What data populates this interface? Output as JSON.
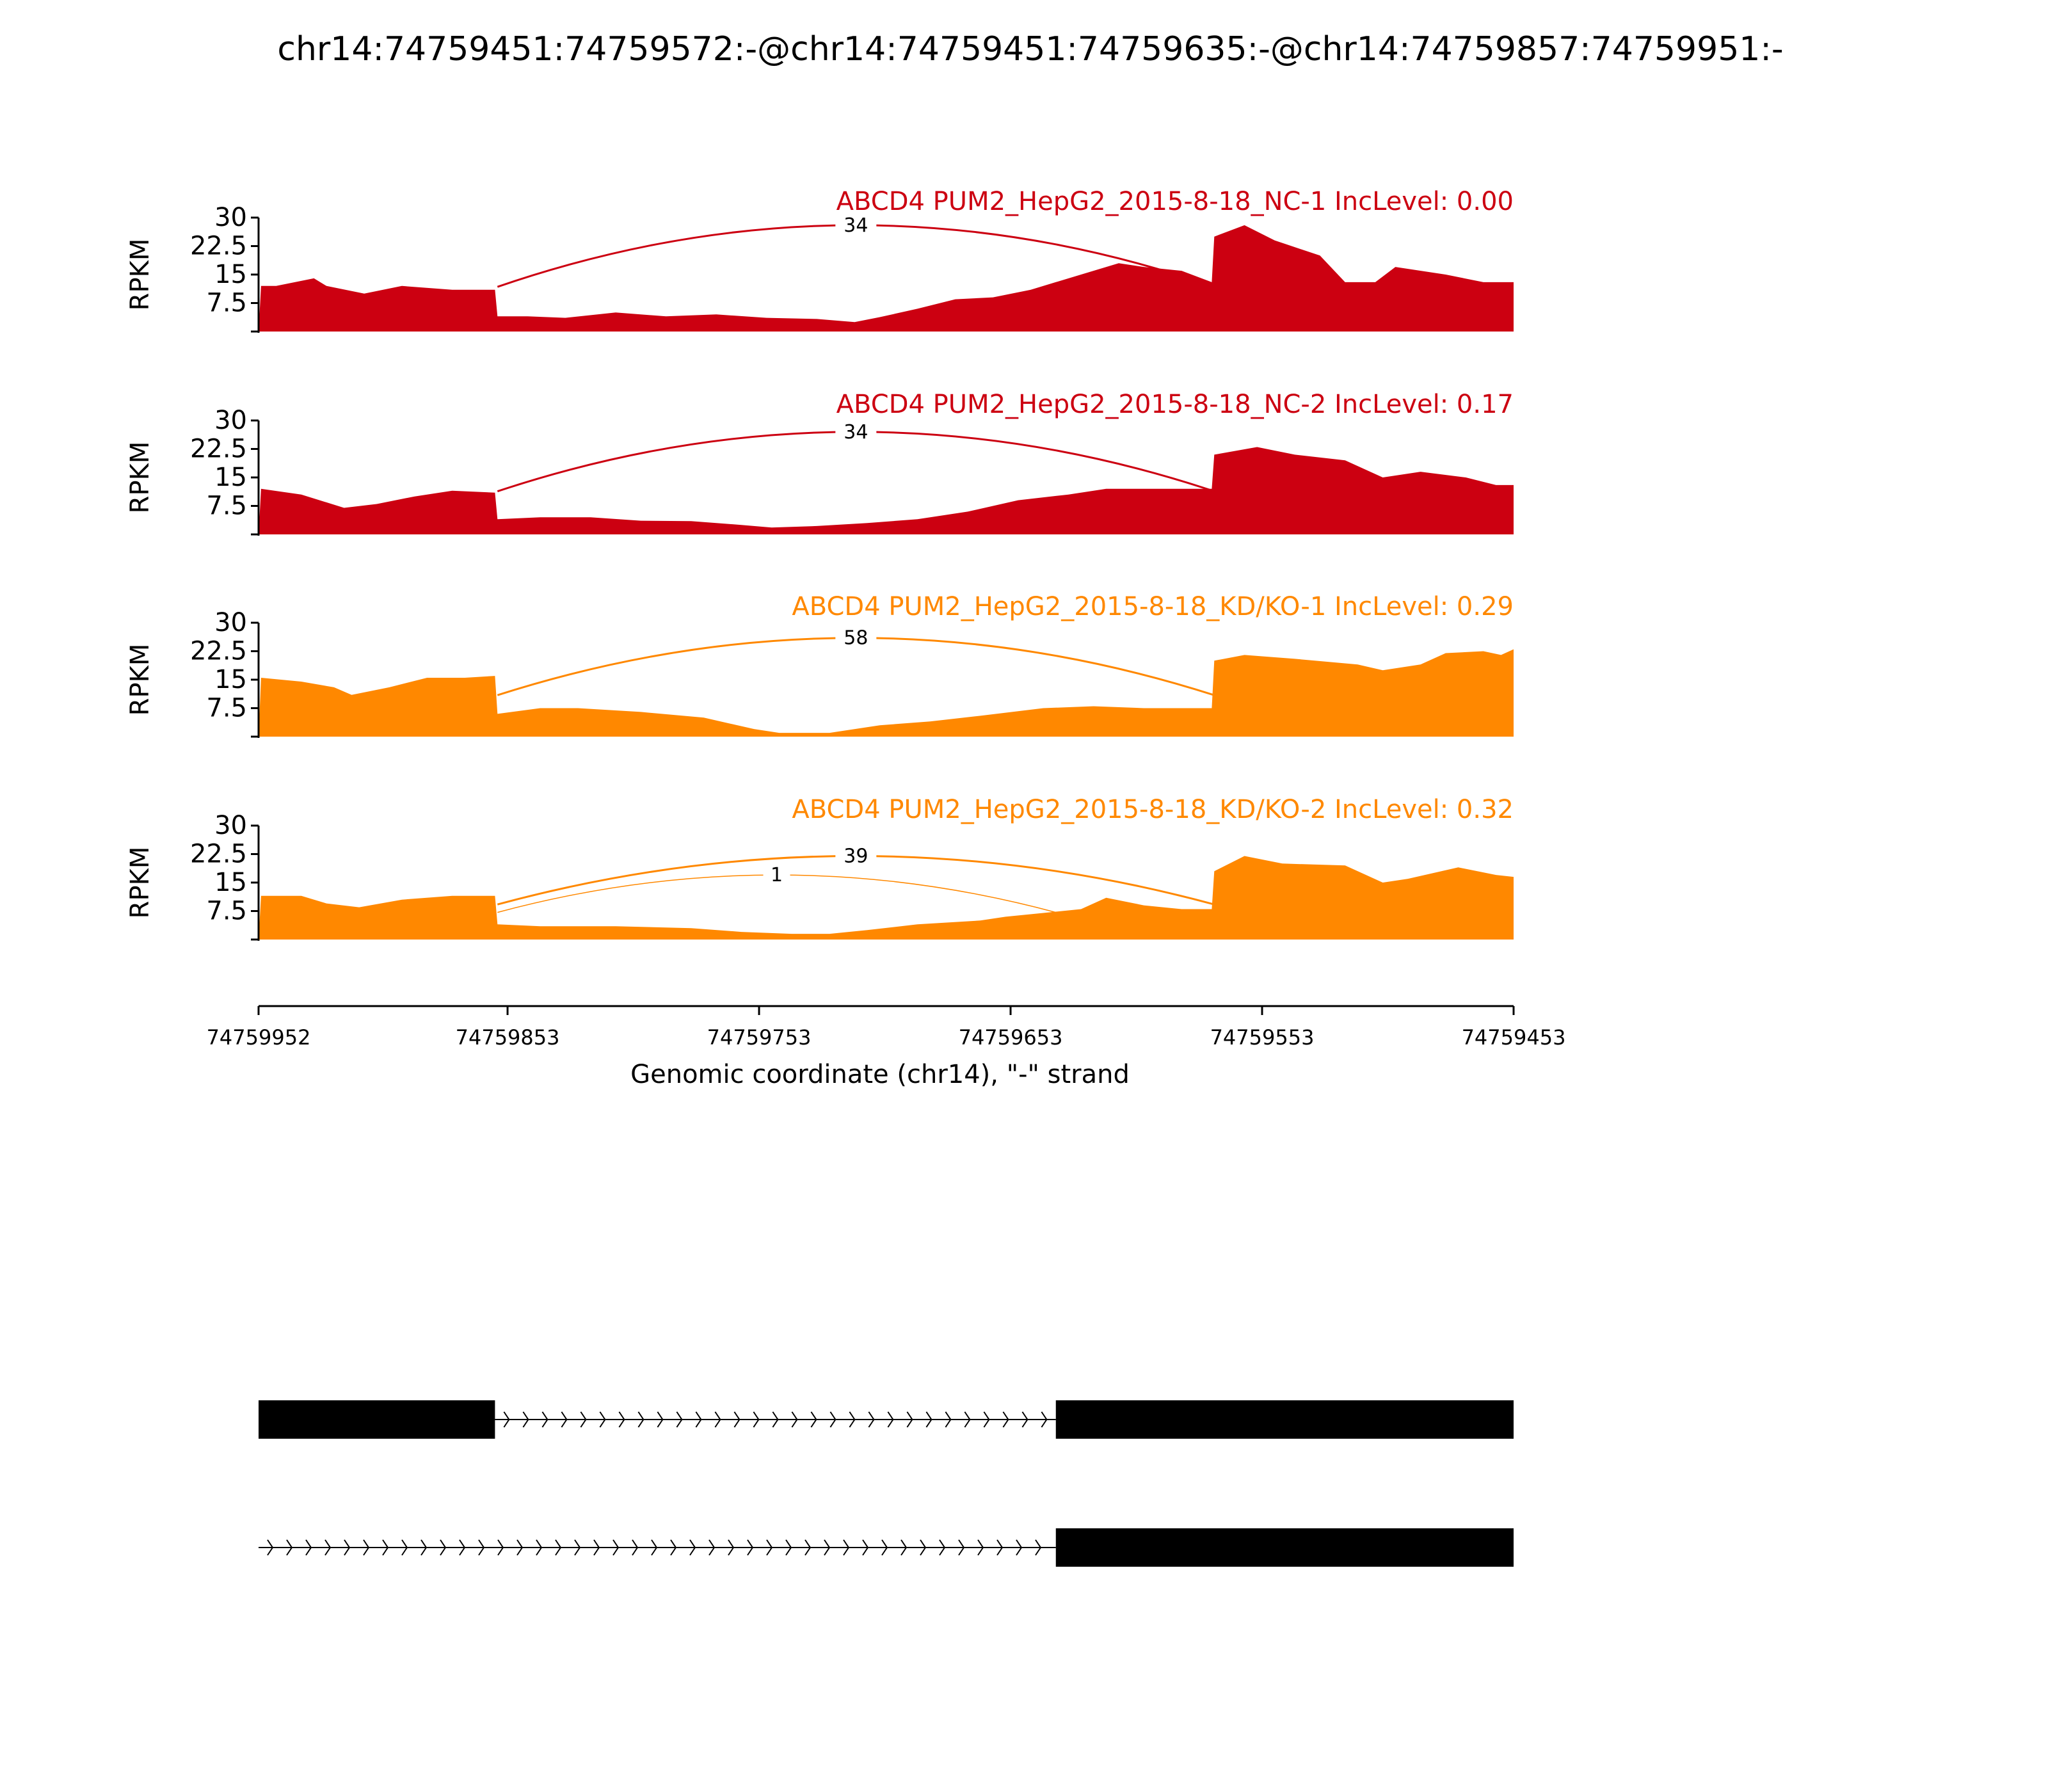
{
  "chart_data": {
    "type": "area",
    "title": "chr14:74759451:74759572:-@chr14:74759451:74759635:-@chr14:74759857:74759951:-",
    "xlabel": "Genomic coordinate (chr14), \"-\" strand",
    "ylabel": "RPKM",
    "x_reversed": true,
    "xlim": [
      74759952,
      74759453
    ],
    "xticks": [
      "74759952",
      "74759853",
      "74759753",
      "74759653",
      "74759553",
      "74759453"
    ],
    "ylim": [
      0,
      30
    ],
    "yticks": [
      "30",
      "22.5",
      "15",
      "7.5"
    ],
    "grid": false,
    "tracks": [
      {
        "name": "ABCD4 PUM2_HepG2_2015-8-18_NC-1 IncLevel: 0.00",
        "color": "#cc0011",
        "coverage": [
          [
            74759952,
            0
          ],
          [
            74759951,
            12
          ],
          [
            74759945,
            12
          ],
          [
            74759930,
            14
          ],
          [
            74759925,
            12
          ],
          [
            74759910,
            10
          ],
          [
            74759895,
            12
          ],
          [
            74759875,
            11
          ],
          [
            74759858,
            11
          ],
          [
            74759857,
            4
          ],
          [
            74759845,
            4
          ],
          [
            74759830,
            3.6
          ],
          [
            74759810,
            5
          ],
          [
            74759790,
            4
          ],
          [
            74759770,
            4.5
          ],
          [
            74759750,
            3.6
          ],
          [
            74759730,
            3.3
          ],
          [
            74759715,
            2.5
          ],
          [
            74759705,
            3.8
          ],
          [
            74759690,
            6
          ],
          [
            74759675,
            8.5
          ],
          [
            74759660,
            9
          ],
          [
            74759645,
            11
          ],
          [
            74759625,
            15
          ],
          [
            74759610,
            18
          ],
          [
            74759600,
            17
          ],
          [
            74759585,
            16
          ],
          [
            74759573,
            13
          ],
          [
            74759572,
            25
          ],
          [
            74759560,
            28
          ],
          [
            74759548,
            24
          ],
          [
            74759530,
            20
          ],
          [
            74759520,
            13
          ],
          [
            74759508,
            13
          ],
          [
            74759500,
            17
          ],
          [
            74759480,
            15
          ],
          [
            74759465,
            13
          ],
          [
            74759453,
            13
          ]
        ],
        "junctions": [
          {
            "count": "34",
            "from": 74759857,
            "to": 74759572,
            "height": 28
          }
        ]
      },
      {
        "name": "ABCD4 PUM2_HepG2_2015-8-18_NC-2 IncLevel: 0.17",
        "color": "#cc0011",
        "coverage": [
          [
            74759952,
            0
          ],
          [
            74759951,
            12
          ],
          [
            74759935,
            10.5
          ],
          [
            74759918,
            7
          ],
          [
            74759905,
            8
          ],
          [
            74759890,
            10
          ],
          [
            74759875,
            11.5
          ],
          [
            74759858,
            11
          ],
          [
            74759857,
            4
          ],
          [
            74759840,
            4.5
          ],
          [
            74759820,
            4.5
          ],
          [
            74759800,
            3.6
          ],
          [
            74759780,
            3.5
          ],
          [
            74759760,
            2.5
          ],
          [
            74759748,
            1.8
          ],
          [
            74759730,
            2.2
          ],
          [
            74759710,
            3
          ],
          [
            74759690,
            4
          ],
          [
            74759670,
            6
          ],
          [
            74759650,
            9
          ],
          [
            74759630,
            10.5
          ],
          [
            74759615,
            12
          ],
          [
            74759590,
            12
          ],
          [
            74759573,
            12
          ],
          [
            74759572,
            21
          ],
          [
            74759555,
            23
          ],
          [
            74759540,
            21
          ],
          [
            74759520,
            19.5
          ],
          [
            74759505,
            15
          ],
          [
            74759490,
            16.5
          ],
          [
            74759472,
            15
          ],
          [
            74759460,
            13
          ],
          [
            74759453,
            13
          ]
        ],
        "junctions": [
          {
            "count": "34",
            "from": 74759857,
            "to": 74759572,
            "height": 27
          }
        ]
      },
      {
        "name": "ABCD4 PUM2_HepG2_2015-8-18_KD/KO-1 IncLevel: 0.29",
        "color": "#ff8800",
        "coverage": [
          [
            74759952,
            0
          ],
          [
            74759951,
            15.5
          ],
          [
            74759935,
            14.5
          ],
          [
            74759922,
            13
          ],
          [
            74759915,
            11
          ],
          [
            74759900,
            13
          ],
          [
            74759885,
            15.5
          ],
          [
            74759870,
            15.5
          ],
          [
            74759858,
            16
          ],
          [
            74759857,
            6
          ],
          [
            74759840,
            7.5
          ],
          [
            74759825,
            7.5
          ],
          [
            74759800,
            6.5
          ],
          [
            74759775,
            5
          ],
          [
            74759765,
            3.5
          ],
          [
            74759755,
            2
          ],
          [
            74759745,
            1
          ],
          [
            74759725,
            1
          ],
          [
            74759705,
            3
          ],
          [
            74759685,
            4
          ],
          [
            74759665,
            5.5
          ],
          [
            74759640,
            7.5
          ],
          [
            74759620,
            8
          ],
          [
            74759600,
            7.5
          ],
          [
            74759585,
            7.5
          ],
          [
            74759573,
            7.5
          ],
          [
            74759572,
            20
          ],
          [
            74759560,
            21.5
          ],
          [
            74759540,
            20.5
          ],
          [
            74759515,
            19
          ],
          [
            74759505,
            17.5
          ],
          [
            74759490,
            19
          ],
          [
            74759480,
            22
          ],
          [
            74759465,
            22.5
          ],
          [
            74759458,
            21.5
          ],
          [
            74759453,
            23
          ]
        ],
        "junctions": [
          {
            "count": "58",
            "from": 74759857,
            "to": 74759572,
            "height": 26
          }
        ]
      },
      {
        "name": "ABCD4 PUM2_HepG2_2015-8-18_KD/KO-2 IncLevel: 0.32",
        "color": "#ff8800",
        "coverage": [
          [
            74759952,
            0
          ],
          [
            74759951,
            11.5
          ],
          [
            74759935,
            11.5
          ],
          [
            74759925,
            9.5
          ],
          [
            74759912,
            8.5
          ],
          [
            74759895,
            10.5
          ],
          [
            74759875,
            11.5
          ],
          [
            74759858,
            11.5
          ],
          [
            74759857,
            4
          ],
          [
            74759840,
            3.5
          ],
          [
            74759810,
            3.5
          ],
          [
            74759780,
            3
          ],
          [
            74759760,
            2
          ],
          [
            74759740,
            1.5
          ],
          [
            74759725,
            1.5
          ],
          [
            74759710,
            2.5
          ],
          [
            74759690,
            4
          ],
          [
            74759665,
            5
          ],
          [
            74759655,
            6
          ],
          [
            74759640,
            7
          ],
          [
            74759625,
            8
          ],
          [
            74759615,
            11
          ],
          [
            74759600,
            9
          ],
          [
            74759585,
            8
          ],
          [
            74759573,
            8
          ],
          [
            74759572,
            18
          ],
          [
            74759560,
            22
          ],
          [
            74759545,
            20
          ],
          [
            74759520,
            19.5
          ],
          [
            74759505,
            15
          ],
          [
            74759495,
            16
          ],
          [
            74759475,
            19
          ],
          [
            74759460,
            17
          ],
          [
            74759453,
            16.5
          ]
        ],
        "junctions": [
          {
            "count": "39",
            "from": 74759857,
            "to": 74759572,
            "height": 22
          },
          {
            "count": "1",
            "from": 74759857,
            "to": 74759635,
            "height": 17
          }
        ]
      }
    ],
    "isoforms": [
      {
        "exons": [
          [
            74759952,
            74759858
          ],
          [
            74759635,
            74759453
          ]
        ],
        "introns": [
          [
            74759858,
            74759635
          ]
        ]
      },
      {
        "exons": [
          [
            74759635,
            74759453
          ]
        ],
        "introns": [
          [
            74759952,
            74759635
          ]
        ]
      }
    ]
  }
}
